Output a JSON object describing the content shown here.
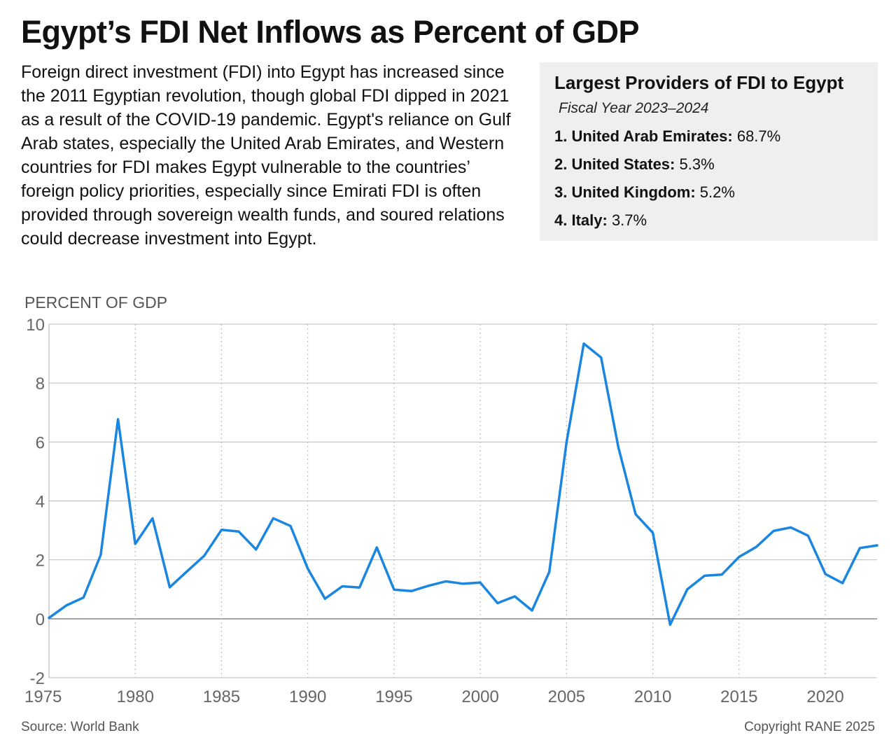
{
  "title": "Egypt’s FDI Net Inflows as Percent of GDP",
  "description": "Foreign direct investment (FDI) into Egypt has increased since the 2011 Egyptian revolution, though global FDI dipped in 2021 as a result of the COVID-19 pandemic. Egypt's reliance on Gulf Arab states, especially the United Arab Emirates, and Western countries for FDI makes Egypt vulnerable to the countries’ foreign policy priorities, especially since Emirati FDI is often provided through sovereign wealth funds, and soured relations could decrease investment into Egypt.",
  "providers_box": {
    "title": "Largest Providers of FDI to Egypt",
    "subtitle": "Fiscal Year 2023–2024",
    "items": [
      {
        "label": "1. United Arab Emirates:",
        "value": "68.7%"
      },
      {
        "label": "2. United States:",
        "value": "5.3%"
      },
      {
        "label": "3. United Kingdom:",
        "value": "5.2%"
      },
      {
        "label": "4. Italy:",
        "value": "3.7%"
      }
    ]
  },
  "footer": {
    "source": "Source: World Bank",
    "copyright": "Copyright RANE 2025"
  },
  "colors": {
    "line": "#1a86e0",
    "gridline": "#bbbbbb",
    "axis_text": "#666666",
    "box_background": "#efefef"
  },
  "chart_data": {
    "type": "line",
    "ylabel": "PERCENT OF GDP",
    "xlabel": "",
    "ylim": [
      -2,
      10
    ],
    "xlim": [
      1975,
      2023
    ],
    "yticks": [
      10,
      8,
      6,
      4,
      2,
      0,
      -2
    ],
    "xticks": [
      1975,
      1980,
      1985,
      1990,
      1995,
      2000,
      2005,
      2010,
      2015,
      2020
    ],
    "grid": {
      "horizontal": "solid",
      "vertical": "dotted"
    },
    "series": [
      {
        "x": [
          1975,
          1976,
          1977,
          1978,
          1979,
          1980,
          1981,
          1982,
          1983,
          1984,
          1985,
          1986,
          1987,
          1988,
          1989,
          1990,
          1991,
          1992,
          1993,
          1994,
          1995,
          1996,
          1997,
          1998,
          1999,
          2000,
          2001,
          2002,
          2003,
          2004,
          2005,
          2006,
          2007,
          2008,
          2009,
          2010,
          2011,
          2012,
          2013,
          2014,
          2015,
          2016,
          2017,
          2018,
          2019,
          2020,
          2021,
          2022,
          2023
        ],
        "values": [
          0.03,
          0.45,
          0.72,
          2.17,
          6.77,
          2.54,
          3.41,
          1.07,
          1.61,
          2.14,
          3.02,
          2.96,
          2.35,
          3.41,
          3.15,
          1.7,
          0.68,
          1.1,
          1.06,
          2.42,
          0.99,
          0.94,
          1.12,
          1.27,
          1.19,
          1.23,
          0.53,
          0.76,
          0.28,
          1.59,
          6.0,
          9.34,
          8.87,
          5.83,
          3.55,
          2.92,
          -0.2,
          1.0,
          1.46,
          1.5,
          2.1,
          2.44,
          2.98,
          3.1,
          2.82,
          1.52,
          1.21,
          2.4,
          2.49
        ]
      }
    ]
  }
}
